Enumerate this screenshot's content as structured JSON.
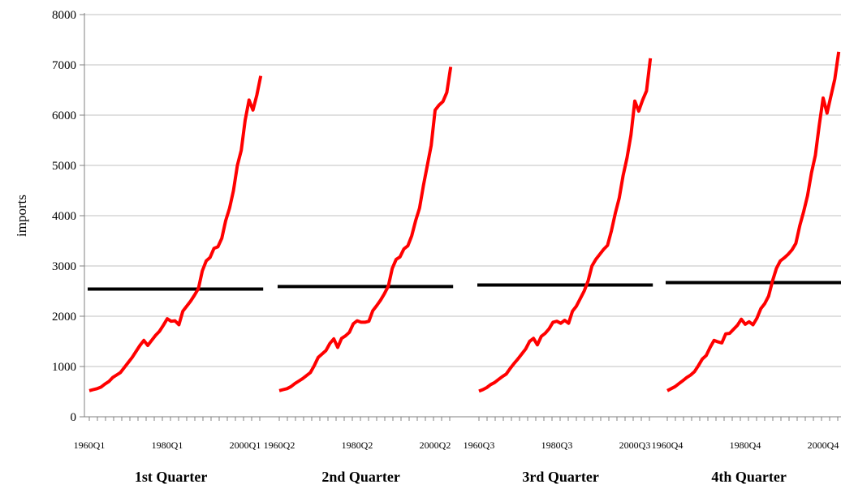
{
  "chart_data": {
    "type": "line",
    "title": "",
    "ylabel": "imports",
    "xlabel": "",
    "ylim": [
      0,
      8000
    ],
    "yticks": [
      0,
      1000,
      2000,
      3000,
      4000,
      5000,
      6000,
      7000,
      8000
    ],
    "grid": "horizontal",
    "colors": {
      "series": "#ff0000",
      "mean": "#000000",
      "grid": "#c0c0c0",
      "axis": "#808080"
    },
    "panels": [
      {
        "name": "1st Quarter",
        "tick_labels": [
          "1960Q1",
          "1980Q1",
          "2000Q1"
        ],
        "mean": 2540,
        "values": [
          520,
          540,
          560,
          590,
          650,
          700,
          780,
          830,
          880,
          980,
          1080,
          1180,
          1300,
          1420,
          1520,
          1420,
          1520,
          1620,
          1700,
          1820,
          1950,
          1900,
          1910,
          1830,
          2100,
          2200,
          2300,
          2420,
          2550,
          2900,
          3100,
          3170,
          3350,
          3380,
          3550,
          3900,
          4150,
          4500,
          5000,
          5300,
          5900,
          6300,
          6100,
          6400,
          6780
        ]
      },
      {
        "name": "2nd Quarter",
        "tick_labels": [
          "1960Q2",
          "1980Q2",
          "2000Q2"
        ],
        "mean": 2590,
        "values": [
          520,
          540,
          560,
          600,
          660,
          710,
          760,
          820,
          880,
          1020,
          1180,
          1250,
          1320,
          1460,
          1550,
          1380,
          1560,
          1610,
          1680,
          1850,
          1910,
          1880,
          1880,
          1900,
          2110,
          2210,
          2320,
          2450,
          2600,
          2950,
          3130,
          3180,
          3340,
          3400,
          3600,
          3900,
          4150,
          4600,
          5000,
          5400,
          6100,
          6200,
          6270,
          6450,
          6960
        ]
      },
      {
        "name": "3rd Quarter",
        "tick_labels": [
          "1960Q3",
          "1980Q3",
          "2000Q3"
        ],
        "mean": 2620,
        "values": [
          510,
          540,
          580,
          640,
          680,
          740,
          800,
          850,
          960,
          1060,
          1150,
          1250,
          1350,
          1500,
          1560,
          1430,
          1600,
          1660,
          1750,
          1880,
          1900,
          1860,
          1920,
          1860,
          2100,
          2200,
          2350,
          2500,
          2700,
          3000,
          3130,
          3230,
          3330,
          3410,
          3700,
          4050,
          4350,
          4800,
          5150,
          5600,
          6280,
          6080,
          6300,
          6480,
          7130
        ]
      },
      {
        "name": "4th Quarter",
        "tick_labels": [
          "1960Q4",
          "1980Q4",
          "2000Q4"
        ],
        "mean": 2670,
        "values": [
          520,
          560,
          600,
          660,
          720,
          780,
          830,
          900,
          1020,
          1150,
          1220,
          1380,
          1520,
          1490,
          1470,
          1650,
          1660,
          1740,
          1820,
          1940,
          1840,
          1890,
          1830,
          1960,
          2150,
          2250,
          2400,
          2700,
          2950,
          3100,
          3160,
          3230,
          3320,
          3450,
          3800,
          4080,
          4400,
          4850,
          5200,
          5800,
          6340,
          6040,
          6380,
          6720,
          7260
        ]
      }
    ]
  }
}
